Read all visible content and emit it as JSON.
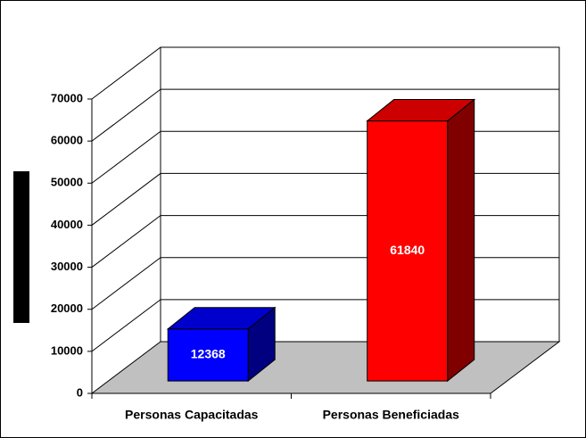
{
  "chart_data": {
    "type": "bar3d",
    "categories": [
      "Personas Capacitadas",
      "Personas Beneficiadas"
    ],
    "series": [
      {
        "values": [
          12368,
          61840
        ],
        "colors": [
          "#0000ff",
          "#ff0000"
        ]
      }
    ],
    "ylim": [
      0,
      70000
    ],
    "yticks": [
      0,
      10000,
      20000,
      30000,
      40000,
      50000,
      60000,
      70000
    ],
    "grid": true
  }
}
